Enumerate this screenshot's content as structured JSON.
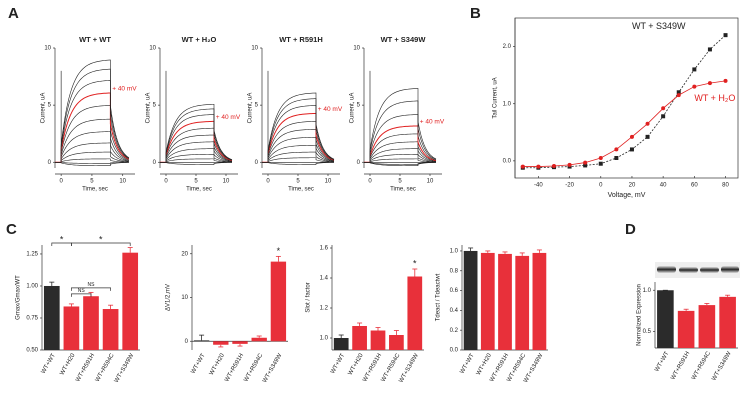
{
  "panels": [
    "A",
    "B",
    "C",
    "D"
  ],
  "chart_data": [
    {
      "type": "traces",
      "title": "WT + WT",
      "annotation": "+ 40 mV",
      "xlabel": "Time, sec",
      "ylabel": "Current, uA",
      "xlim": [
        -1,
        12
      ],
      "ylim": [
        -0.5,
        10
      ],
      "xticks": [
        0,
        5,
        10
      ],
      "yticks": [
        0,
        5,
        10
      ],
      "values": [
        -0.3,
        -0.1,
        0.3,
        0.9,
        1.7,
        2.7,
        3.8,
        5.0,
        6.1,
        7.2,
        8.2,
        9.0
      ],
      "colors": [
        "#222",
        "#222",
        "#222",
        "#222",
        "#222",
        "#222",
        "#222",
        "#222",
        "#e02020",
        "#222",
        "#222",
        "#222"
      ]
    },
    {
      "type": "traces",
      "title": "WT + H₂O",
      "annotation": "+ 40 mV",
      "xlabel": "Time, sec",
      "ylabel": "Current, uA",
      "xlim": [
        -1,
        12
      ],
      "ylim": [
        -0.5,
        10
      ],
      "xticks": [
        0,
        5,
        10
      ],
      "yticks": [
        0,
        5,
        10
      ],
      "values": [
        -0.2,
        0,
        0.3,
        0.7,
        1.2,
        1.8,
        2.4,
        3.0,
        3.6,
        4.2,
        4.7,
        5.1
      ],
      "colors": [
        "#222",
        "#222",
        "#222",
        "#222",
        "#222",
        "#222",
        "#222",
        "#222",
        "#e02020",
        "#222",
        "#222",
        "#222"
      ]
    },
    {
      "type": "traces",
      "title": "WT + R591H",
      "annotation": "+ 40 mV",
      "xlabel": "Time, sec",
      "ylabel": "Current, uA",
      "xlim": [
        -1,
        12
      ],
      "ylim": [
        -0.5,
        10
      ],
      "xticks": [
        0,
        5,
        10
      ],
      "yticks": [
        0,
        5,
        10
      ],
      "values": [
        -0.2,
        0,
        0.4,
        0.9,
        1.5,
        2.2,
        2.9,
        3.6,
        4.3,
        5.0,
        5.6,
        6.1
      ],
      "colors": [
        "#222",
        "#222",
        "#222",
        "#222",
        "#222",
        "#222",
        "#222",
        "#222",
        "#e02020",
        "#222",
        "#222",
        "#222"
      ]
    },
    {
      "type": "traces",
      "title": "WT + S349W",
      "annotation": "+ 40 mV",
      "xlabel": "Time, sec",
      "ylabel": "Current, uA",
      "xlim": [
        -1,
        12
      ],
      "ylim": [
        -0.5,
        10
      ],
      "xticks": [
        0,
        5,
        10
      ],
      "yticks": [
        0,
        5,
        10
      ],
      "values": [
        -0.3,
        -0.2,
        0,
        0.3,
        0.7,
        1.2,
        1.8,
        2.5,
        3.2,
        4.2,
        5.4,
        6.5
      ],
      "colors": [
        "#222",
        "#222",
        "#222",
        "#222",
        "#222",
        "#222",
        "#222",
        "#222",
        "#e02020",
        "#222",
        "#222",
        "#222"
      ]
    },
    {
      "type": "line",
      "xlabel": "Voltage, mV",
      "ylabel": "Tail Current, uA",
      "xlim": [
        -55,
        88
      ],
      "ylim": [
        -0.3,
        2.5
      ],
      "xticks": [
        -40,
        -20,
        0,
        20,
        40,
        60,
        80
      ],
      "yticks": [
        {
          "value": 0,
          "label": "0.0"
        },
        {
          "value": 1,
          "label": "1.0"
        },
        {
          "value": 2,
          "label": "2.0"
        }
      ],
      "x": [
        -50,
        -40,
        -30,
        -20,
        -10,
        0,
        10,
        20,
        30,
        40,
        50,
        60,
        70,
        80
      ],
      "series": [
        {
          "name": "WT + S349W",
          "color": "#222222",
          "marker": "square",
          "values": [
            -0.12,
            -0.12,
            -0.11,
            -0.1,
            -0.08,
            -0.05,
            0.05,
            0.2,
            0.42,
            0.78,
            1.2,
            1.6,
            1.95,
            2.2
          ]
        },
        {
          "name": "WT + H₂O",
          "color": "#e02020",
          "marker": "circle",
          "values": [
            -0.1,
            -0.1,
            -0.09,
            -0.07,
            -0.03,
            0.05,
            0.2,
            0.42,
            0.65,
            0.92,
            1.15,
            1.3,
            1.36,
            1.4
          ]
        }
      ]
    },
    {
      "type": "bar",
      "ylabel": "Gmax/Gmax/WT",
      "ylim": [
        0.5,
        1.32
      ],
      "yticks": [
        {
          "value": 0.5,
          "label": "0.50"
        },
        0.75,
        {
          "value": 1,
          "label": "1.00"
        },
        1.25
      ],
      "categories": [
        "WT+WT",
        "WT+H20",
        "WT+R591H",
        "WT+R594C",
        "WT+S349W"
      ],
      "values": [
        1.0,
        0.84,
        0.92,
        0.82,
        1.26
      ],
      "errors": [
        0.03,
        0.02,
        0.03,
        0.03,
        0.04
      ],
      "colors": [
        "#2b2b2b",
        "#e8303a",
        "#e8303a",
        "#e8303a",
        "#e8303a"
      ],
      "annotations": [
        "*",
        "*",
        "NS",
        "NS"
      ]
    },
    {
      "type": "bar",
      "ylabel": "ΔV1/2,mV",
      "ylim": [
        -2,
        22
      ],
      "yticks": [
        0,
        10,
        20
      ],
      "categories": [
        "WT+WT",
        "WT+H20",
        "WT+R591H",
        "WT+R594C",
        "WT+S349W"
      ],
      "values": [
        0.2,
        -0.8,
        -0.6,
        0.8,
        18.2
      ],
      "errors": [
        1.2,
        0.5,
        0.5,
        0.4,
        1.2
      ],
      "colors": [
        "#2b2b2b",
        "#e8303a",
        "#e8303a",
        "#e8303a",
        "#e8303a"
      ],
      "annotations": [
        "*"
      ]
    },
    {
      "type": "bar",
      "ylabel": "Slot / factor",
      "ylim": [
        0.92,
        1.62
      ],
      "yticks": [
        {
          "value": 1,
          "label": "1.0"
        },
        1.2,
        1.4,
        1.6
      ],
      "categories": [
        "WT+WT",
        "WT+H20",
        "WT+R591H",
        "WT+R594C",
        "WT+S349W"
      ],
      "values": [
        1.0,
        1.08,
        1.05,
        1.02,
        1.41
      ],
      "errors": [
        0.02,
        0.02,
        0.02,
        0.03,
        0.05
      ],
      "colors": [
        "#2b2b2b",
        "#e8303a",
        "#e8303a",
        "#e8303a",
        "#e8303a"
      ],
      "annotations": [
        "*"
      ]
    },
    {
      "type": "bar",
      "ylabel": "Tdeact / Tdeactwt",
      "ylim": [
        0,
        1.06
      ],
      "yticks": [
        {
          "value": 0,
          "label": "0.0"
        },
        0.2,
        0.4,
        0.6,
        0.8,
        {
          "value": 1,
          "label": "1.0"
        }
      ],
      "categories": [
        "WT+WT",
        "WT+H20",
        "WT+R591H",
        "WT+R594C",
        "WT+S349W"
      ],
      "values": [
        1.0,
        0.98,
        0.97,
        0.95,
        0.98
      ],
      "errors": [
        0.03,
        0.02,
        0.02,
        0.03,
        0.03
      ],
      "colors": [
        "#2b2b2b",
        "#e8303a",
        "#e8303a",
        "#e8303a",
        "#e8303a"
      ],
      "annotations": []
    },
    {
      "type": "bar",
      "ylabel": "Normalized Expression",
      "ylim": [
        0.3,
        1.1
      ],
      "yticks": [
        0.5,
        {
          "value": 1,
          "label": "1.0"
        }
      ],
      "categories": [
        "WT+WT",
        "WT+R591H",
        "WT+R594C",
        "WT+S349W"
      ],
      "values": [
        1.0,
        0.75,
        0.82,
        0.92
      ],
      "errors": [
        0,
        0.02,
        0.02,
        0.02
      ],
      "colors": [
        "#2b2b2b",
        "#e8303a",
        "#e8303a",
        "#e8303a"
      ],
      "annotations": []
    }
  ]
}
